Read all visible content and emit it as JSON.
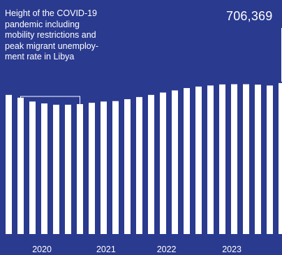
{
  "colors": {
    "background": "#2a3a8f",
    "bar": "#ffffff",
    "text": "#ffffff"
  },
  "chart_data": {
    "type": "bar",
    "values": [
      651000,
      638000,
      620000,
      611000,
      605000,
      605000,
      608000,
      614000,
      620000,
      622000,
      631000,
      641000,
      651000,
      662000,
      672000,
      683000,
      690000,
      695000,
      700000,
      701000,
      701000,
      699000,
      695000,
      706369
    ],
    "year_labels": [
      "2020",
      "2021",
      "2022",
      "2023"
    ],
    "year_label_bar_index": [
      2.8,
      8.2,
      13.3,
      18.8
    ],
    "ylim": [
      0,
      1095000
    ],
    "grid": false,
    "annotation": {
      "lines": [
        "Height of the COVID-19",
        "pandemic including",
        "mobility restrictions and",
        "peak migrant unemploy-",
        "ment rate in Libya"
      ],
      "bracket_bars": [
        1,
        6
      ]
    },
    "callout": {
      "label": "706,369",
      "bar_index": 23
    }
  }
}
